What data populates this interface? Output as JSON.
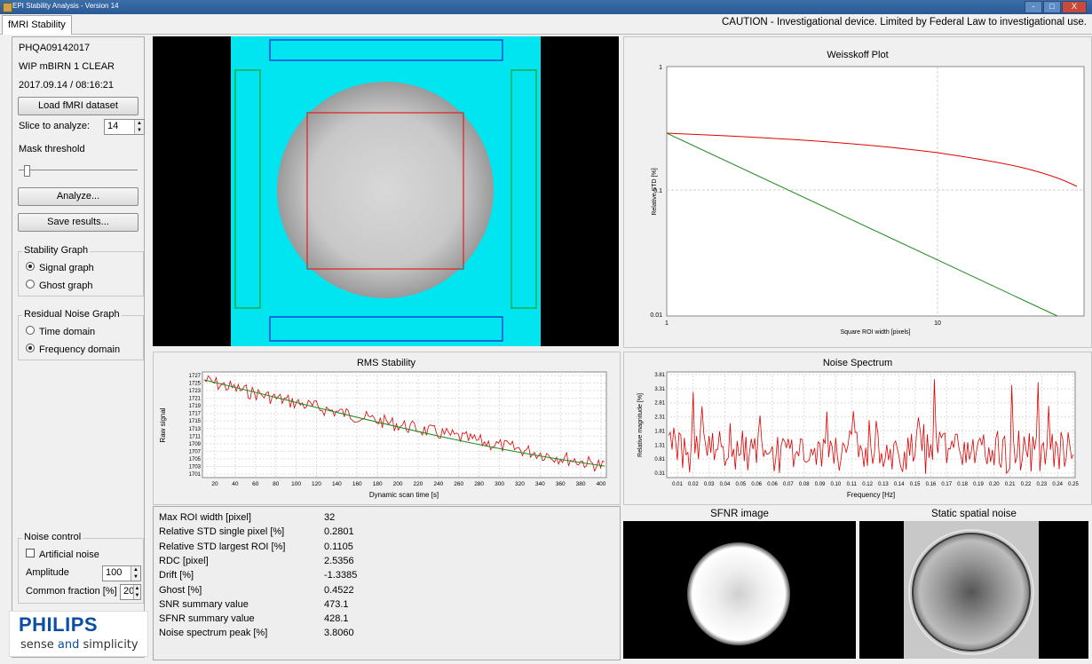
{
  "window": {
    "title": "EPI Stability Analysis - Version 14",
    "buttons": [
      "-",
      "□",
      "X"
    ]
  },
  "tab": {
    "label": "fMRI Stability"
  },
  "caution": "CAUTION - Investigational device. Limited by Federal Law to investigational use.",
  "left_panel": {
    "dataset_id": "PHQA09142017",
    "sequence": "WIP mBIRN 1 CLEAR",
    "datetime": "2017.09.14 / 08:16:21",
    "load_button": "Load fMRI dataset",
    "slice_label": "Slice to analyze:",
    "slice_value": "14",
    "mask_label": "Mask threshold",
    "mask_threshold_fraction": 0.05,
    "analyze_button": "Analyze...",
    "save_button": "Save results...",
    "stability_group": {
      "title": "Stability Graph",
      "options": [
        "Signal graph",
        "Ghost graph"
      ],
      "selected": 0
    },
    "residual_group": {
      "title": "Residual Noise Graph",
      "options": [
        "Time domain",
        "Frequency domain"
      ],
      "selected": 1
    },
    "noise_group": {
      "title": "Noise control",
      "artificial_noise": "Artificial noise",
      "artificial_noise_checked": false,
      "amplitude_label": "Amplitude",
      "amplitude_value": "100",
      "common_fraction_label": "Common fraction [%]",
      "common_fraction_value": "20"
    }
  },
  "logo": {
    "brand": "PHILIPS",
    "slogan_pre": "sense ",
    "slogan_and": "and",
    "slogan_post": " simplicity"
  },
  "weisskoff": {
    "title": "Weisskoff Plot",
    "ylabel": "Relative STD [%]",
    "xlabel": "Square ROI width [pixels]",
    "yticks": [
      "1",
      "0.1",
      "0.01"
    ],
    "xticks": [
      "1",
      "10"
    ]
  },
  "rms": {
    "title": "RMS Stability",
    "ylabel": "Raw signal",
    "xlabel": "Dynamic scan time [s]",
    "yticks": [
      "1727",
      "1725",
      "1723",
      "1721",
      "1719",
      "1717",
      "1715",
      "1713",
      "1711",
      "1709",
      "1707",
      "1705",
      "1703",
      "1701"
    ],
    "xticks": [
      "20",
      "40",
      "60",
      "80",
      "100",
      "120",
      "140",
      "160",
      "180",
      "200",
      "220",
      "240",
      "260",
      "280",
      "300",
      "320",
      "340",
      "360",
      "380",
      "400"
    ]
  },
  "noise_spectrum": {
    "title": "Noise Spectrum",
    "ylabel": "Relative magnitude [%]",
    "xlabel": "Frequency [Hz]",
    "yticks": [
      "3.81",
      "3.31",
      "2.81",
      "2.31",
      "1.81",
      "1.31",
      "0.81",
      "0.31"
    ],
    "xticks": [
      "0.01",
      "0.02",
      "0.03",
      "0.04",
      "0.05",
      "0.06",
      "0.06",
      "0.07",
      "0.08",
      "0.09",
      "0.10",
      "0.11",
      "0.12",
      "0.13",
      "0.14",
      "0.15",
      "0.16",
      "0.17",
      "0.18",
      "0.19",
      "0.20",
      "0.21",
      "0.22",
      "0.23",
      "0.24",
      "0.25"
    ]
  },
  "stats": [
    {
      "k": "Max ROI width [pixel]",
      "v": "32"
    },
    {
      "k": "Relative STD single pixel [%]",
      "v": "0.2801"
    },
    {
      "k": "Relative STD largest ROI [%]",
      "v": "0.1105"
    },
    {
      "k": "RDC [pixel]",
      "v": "2.5356"
    },
    {
      "k": "Drift [%]",
      "v": "-1.3385"
    },
    {
      "k": "Ghost [%]",
      "v": "0.4522"
    },
    {
      "k": "SNR summary value",
      "v": "473.1"
    },
    {
      "k": "SFNR summary value",
      "v": "428.1"
    },
    {
      "k": "Noise spectrum peak [%]",
      "v": "3.8060"
    }
  ],
  "images": {
    "sfnr_caption": "SFNR image",
    "static_caption": "Static spatial noise"
  },
  "colors": {
    "cyan": "#00e5f0",
    "roi_red": "#e02020",
    "ghost_blue": "#2020d0",
    "side_green": "#20a020",
    "plot_red": "#e00000",
    "plot_green": "#1a8a1a"
  }
}
